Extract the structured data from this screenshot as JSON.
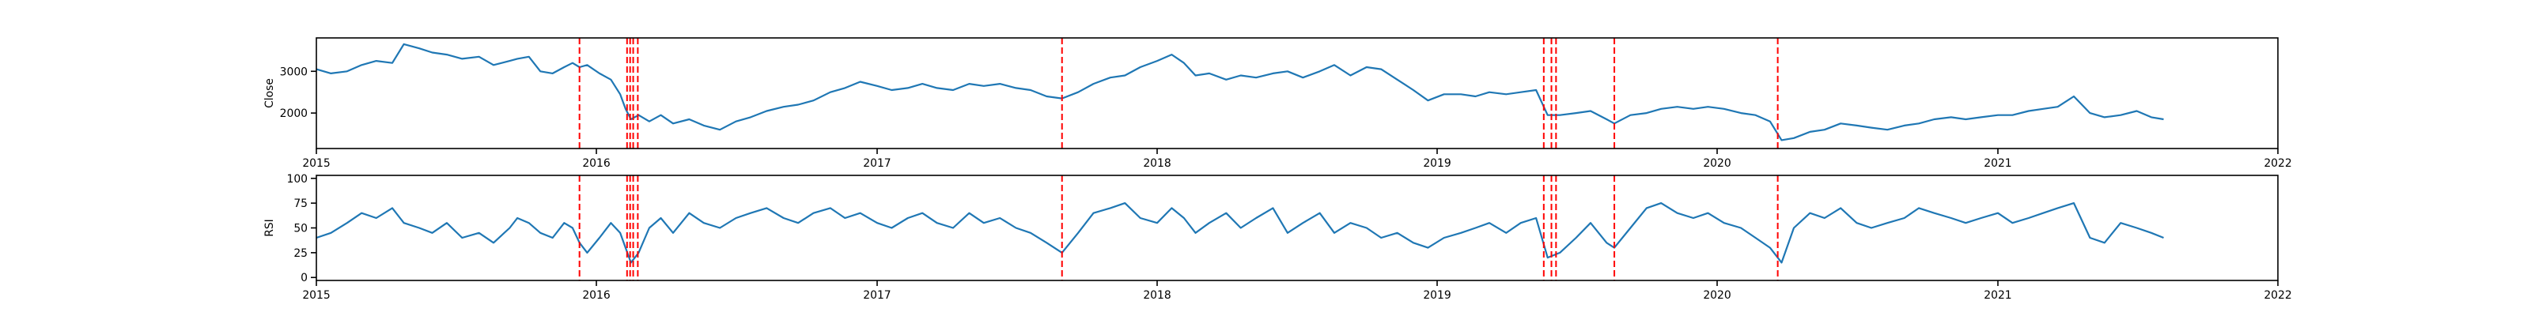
{
  "chart_data": [
    {
      "type": "line",
      "ylabel": "Close",
      "xlabel": "",
      "title": "",
      "xlim": [
        "2015-01-01",
        "2022-01-01"
      ],
      "ylim": [
        1150,
        3800
      ],
      "yticks": [
        2000,
        3000
      ],
      "xticks": [
        "2015",
        "2016",
        "2017",
        "2018",
        "2019",
        "2020",
        "2021",
        "2022"
      ],
      "grid": false,
      "line_color": "#1f77b4",
      "series": [
        {
          "x": [
            "2015-01-01",
            "2015-01-20",
            "2015-02-10",
            "2015-03-01",
            "2015-03-20",
            "2015-04-10",
            "2015-04-25",
            "2015-05-15",
            "2015-06-01",
            "2015-06-20",
            "2015-07-10",
            "2015-08-01",
            "2015-08-20",
            "2015-09-10",
            "2015-09-20",
            "2015-10-05",
            "2015-10-20",
            "2015-11-05",
            "2015-11-20",
            "2015-12-01",
            "2015-12-10",
            "2015-12-20",
            "2016-01-05",
            "2016-01-20",
            "2016-02-01",
            "2016-02-08",
            "2016-02-15",
            "2016-02-25",
            "2016-03-10",
            "2016-03-25",
            "2016-04-10",
            "2016-05-01",
            "2016-05-20",
            "2016-06-10",
            "2016-07-01",
            "2016-07-20",
            "2016-08-10",
            "2016-09-01",
            "2016-09-20",
            "2016-10-10",
            "2016-11-01",
            "2016-11-20",
            "2016-12-10",
            "2017-01-01",
            "2017-01-20",
            "2017-02-10",
            "2017-03-01",
            "2017-03-20",
            "2017-04-10",
            "2017-05-01",
            "2017-05-20",
            "2017-06-10",
            "2017-07-01",
            "2017-07-20",
            "2017-08-10",
            "2017-08-30",
            "2017-09-20",
            "2017-10-10",
            "2017-11-01",
            "2017-11-20",
            "2017-12-10",
            "2018-01-01",
            "2018-01-20",
            "2018-02-05",
            "2018-02-20",
            "2018-03-10",
            "2018-04-01",
            "2018-04-20",
            "2018-05-10",
            "2018-06-01",
            "2018-06-20",
            "2018-07-10",
            "2018-08-01",
            "2018-08-20",
            "2018-09-10",
            "2018-10-01",
            "2018-10-20",
            "2018-11-10",
            "2018-12-01",
            "2018-12-20",
            "2019-01-10",
            "2019-02-01",
            "2019-02-20",
            "2019-03-10",
            "2019-04-01",
            "2019-04-20",
            "2019-05-10",
            "2019-05-25",
            "2019-06-10",
            "2019-07-01",
            "2019-07-20",
            "2019-08-10",
            "2019-08-20",
            "2019-09-10",
            "2019-10-01",
            "2019-10-20",
            "2019-11-10",
            "2019-12-01",
            "2019-12-20",
            "2020-01-10",
            "2020-02-01",
            "2020-02-20",
            "2020-03-10",
            "2020-03-25",
            "2020-04-10",
            "2020-05-01",
            "2020-05-20",
            "2020-06-10",
            "2020-07-01",
            "2020-07-20",
            "2020-08-10",
            "2020-09-01",
            "2020-09-20",
            "2020-10-10",
            "2020-11-01",
            "2020-11-20",
            "2020-12-10",
            "2021-01-01",
            "2021-01-20",
            "2021-02-10",
            "2021-03-01",
            "2021-03-20",
            "2021-04-10",
            "2021-05-01",
            "2021-05-20",
            "2021-06-10",
            "2021-07-01",
            "2021-07-20",
            "2021-08-05"
          ],
          "y": [
            3050,
            2950,
            3000,
            3150,
            3250,
            3200,
            3650,
            3550,
            3450,
            3400,
            3300,
            3350,
            3150,
            3250,
            3300,
            3350,
            3000,
            2950,
            3100,
            3200,
            3100,
            3150,
            2950,
            2800,
            2450,
            2100,
            1850,
            1950,
            1800,
            1950,
            1750,
            1850,
            1700,
            1600,
            1800,
            1900,
            2050,
            2150,
            2200,
            2300,
            2500,
            2600,
            2750,
            2650,
            2550,
            2600,
            2700,
            2600,
            2550,
            2700,
            2650,
            2700,
            2600,
            2550,
            2400,
            2350,
            2500,
            2700,
            2850,
            2900,
            3100,
            3250,
            3400,
            3200,
            2900,
            2950,
            2800,
            2900,
            2850,
            2950,
            3000,
            2850,
            3000,
            3150,
            2900,
            3100,
            3050,
            2800,
            2550,
            2300,
            2450,
            2450,
            2400,
            2500,
            2450,
            2500,
            2550,
            1950,
            1950,
            2000,
            2050,
            1850,
            1750,
            1950,
            2000,
            2100,
            2150,
            2100,
            2150,
            2100,
            2000,
            1950,
            1800,
            1350,
            1400,
            1550,
            1600,
            1750,
            1700,
            1650,
            1600,
            1700,
            1750,
            1850,
            1900,
            1850,
            1900,
            1950,
            1950,
            2050,
            2100,
            2150,
            2400,
            2000,
            1900,
            1950,
            2050,
            1900,
            1850
          ]
        }
      ],
      "vlines": [
        "2015-12-10",
        "2016-02-10",
        "2016-02-14",
        "2016-02-18",
        "2016-02-24",
        "2017-08-30",
        "2019-05-20",
        "2019-05-30",
        "2019-06-05",
        "2019-08-20",
        "2020-03-20"
      ],
      "vline_color": "#ff0000"
    },
    {
      "type": "line",
      "ylabel": "RSI",
      "xlabel": "",
      "title": "",
      "xlim": [
        "2015-01-01",
        "2022-01-01"
      ],
      "ylim": [
        -3,
        103
      ],
      "yticks": [
        0,
        25,
        50,
        75,
        100
      ],
      "xticks": [
        "2015",
        "2016",
        "2017",
        "2018",
        "2019",
        "2020",
        "2021",
        "2022"
      ],
      "grid": false,
      "line_color": "#1f77b4",
      "series": [
        {
          "x": [
            "2015-01-01",
            "2015-01-20",
            "2015-02-10",
            "2015-03-01",
            "2015-03-20",
            "2015-04-10",
            "2015-04-25",
            "2015-05-15",
            "2015-06-01",
            "2015-06-20",
            "2015-07-10",
            "2015-08-01",
            "2015-08-20",
            "2015-09-10",
            "2015-09-20",
            "2015-10-05",
            "2015-10-20",
            "2015-11-05",
            "2015-11-20",
            "2015-12-01",
            "2015-12-10",
            "2015-12-20",
            "2016-01-05",
            "2016-01-20",
            "2016-02-01",
            "2016-02-08",
            "2016-02-15",
            "2016-02-25",
            "2016-03-10",
            "2016-03-25",
            "2016-04-10",
            "2016-05-01",
            "2016-05-20",
            "2016-06-10",
            "2016-07-01",
            "2016-07-20",
            "2016-08-10",
            "2016-09-01",
            "2016-09-20",
            "2016-10-10",
            "2016-11-01",
            "2016-11-20",
            "2016-12-10",
            "2017-01-01",
            "2017-01-20",
            "2017-02-10",
            "2017-03-01",
            "2017-03-20",
            "2017-04-10",
            "2017-05-01",
            "2017-05-20",
            "2017-06-10",
            "2017-07-01",
            "2017-07-20",
            "2017-08-10",
            "2017-08-30",
            "2017-09-20",
            "2017-10-10",
            "2017-11-01",
            "2017-11-20",
            "2017-12-10",
            "2018-01-01",
            "2018-01-20",
            "2018-02-05",
            "2018-02-20",
            "2018-03-10",
            "2018-04-01",
            "2018-04-20",
            "2018-05-10",
            "2018-06-01",
            "2018-06-20",
            "2018-07-10",
            "2018-08-01",
            "2018-08-20",
            "2018-09-10",
            "2018-10-01",
            "2018-10-20",
            "2018-11-10",
            "2018-12-01",
            "2018-12-20",
            "2019-01-10",
            "2019-02-01",
            "2019-02-20",
            "2019-03-10",
            "2019-04-01",
            "2019-04-20",
            "2019-05-10",
            "2019-05-25",
            "2019-06-10",
            "2019-07-01",
            "2019-07-20",
            "2019-08-10",
            "2019-08-20",
            "2019-09-10",
            "2019-10-01",
            "2019-10-20",
            "2019-11-10",
            "2019-12-01",
            "2019-12-20",
            "2020-01-10",
            "2020-02-01",
            "2020-02-20",
            "2020-03-10",
            "2020-03-25",
            "2020-04-10",
            "2020-05-01",
            "2020-05-20",
            "2020-06-10",
            "2020-07-01",
            "2020-07-20",
            "2020-08-10",
            "2020-09-01",
            "2020-09-20",
            "2020-10-10",
            "2020-11-01",
            "2020-11-20",
            "2020-12-10",
            "2021-01-01",
            "2021-01-20",
            "2021-02-10",
            "2021-03-01",
            "2021-03-20",
            "2021-04-10",
            "2021-05-01",
            "2021-05-20",
            "2021-06-10",
            "2021-07-01",
            "2021-07-20",
            "2021-08-05"
          ],
          "y": [
            40,
            45,
            55,
            65,
            60,
            70,
            55,
            50,
            45,
            55,
            40,
            45,
            35,
            50,
            60,
            55,
            45,
            40,
            55,
            50,
            35,
            25,
            40,
            55,
            45,
            30,
            15,
            25,
            50,
            60,
            45,
            65,
            55,
            50,
            60,
            65,
            70,
            60,
            55,
            65,
            70,
            60,
            65,
            55,
            50,
            60,
            65,
            55,
            50,
            65,
            55,
            60,
            50,
            45,
            35,
            25,
            45,
            65,
            70,
            75,
            60,
            55,
            70,
            60,
            45,
            55,
            65,
            50,
            60,
            70,
            45,
            55,
            65,
            45,
            55,
            50,
            40,
            45,
            35,
            30,
            40,
            45,
            50,
            55,
            45,
            55,
            60,
            20,
            25,
            40,
            55,
            35,
            30,
            50,
            70,
            75,
            65,
            60,
            65,
            55,
            50,
            40,
            30,
            15,
            50,
            65,
            60,
            70,
            55,
            50,
            55,
            60,
            70,
            65,
            60,
            55,
            60,
            65,
            55,
            60,
            65,
            70,
            75,
            40,
            35,
            55,
            50,
            45,
            40
          ]
        }
      ],
      "vlines": [
        "2015-12-10",
        "2016-02-10",
        "2016-02-14",
        "2016-02-18",
        "2016-02-24",
        "2017-08-30",
        "2019-05-20",
        "2019-05-30",
        "2019-06-05",
        "2019-08-20",
        "2020-03-20"
      ],
      "vline_color": "#ff0000"
    }
  ]
}
